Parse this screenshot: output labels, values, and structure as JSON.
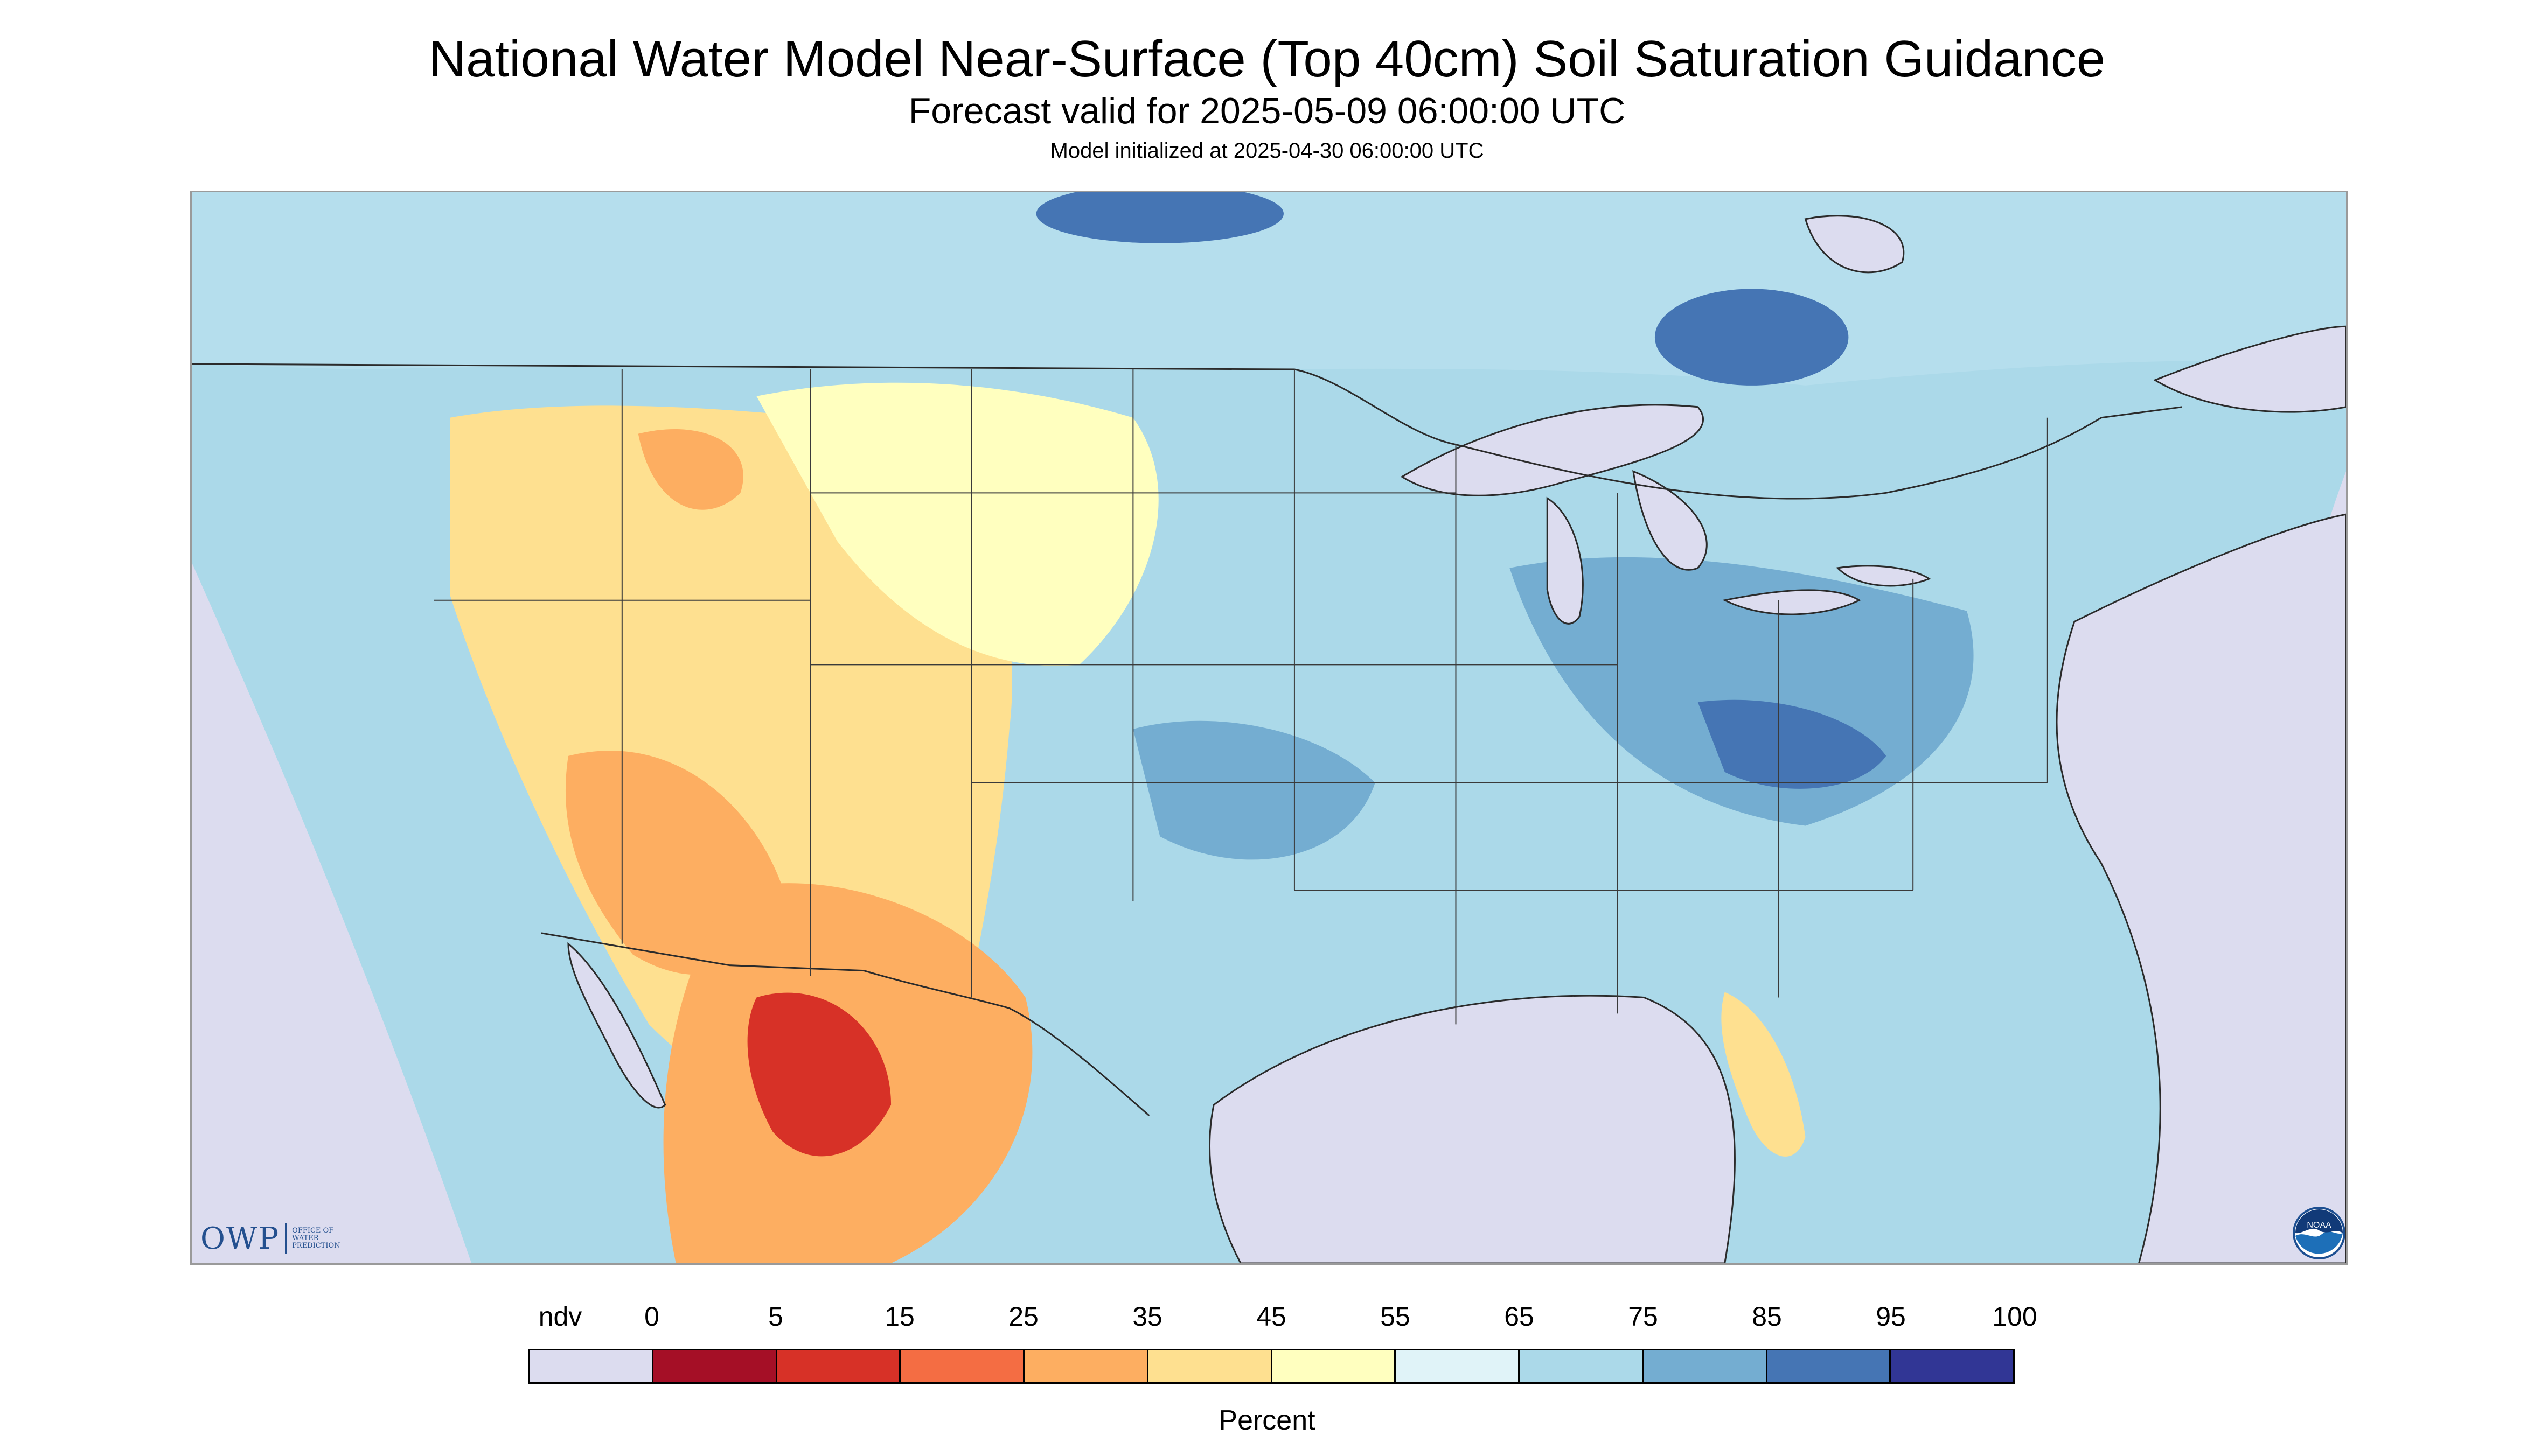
{
  "title": "National Water Model Near-Surface (Top 40cm) Soil Saturation Guidance",
  "subtitle": "Forecast valid for 2025-05-09 06:00:00 UTC",
  "initialized": "Model initialized at 2025-04-30 06:00:00 UTC",
  "legend": {
    "labels": [
      "ndv",
      "0",
      "5",
      "15",
      "25",
      "35",
      "45",
      "55",
      "65",
      "75",
      "85",
      "95",
      "100"
    ],
    "colors": [
      "#dcdcef",
      "#a50f26",
      "#d73127",
      "#f46d43",
      "#fdae61",
      "#fee090",
      "#ffffbf",
      "#e0f3f8",
      "#abd9e9",
      "#74add1",
      "#4575b4",
      "#313695"
    ],
    "units": "Percent"
  },
  "colors": {
    "no_data": "#dcdcef",
    "water": "#dcdcef",
    "boundary": "#2b2b2b"
  },
  "logos": {
    "owp": {
      "mark": "OWP",
      "line1": "OFFICE OF",
      "line2": "WATER",
      "line3": "PREDICTION"
    },
    "noaa": "NOAA"
  }
}
